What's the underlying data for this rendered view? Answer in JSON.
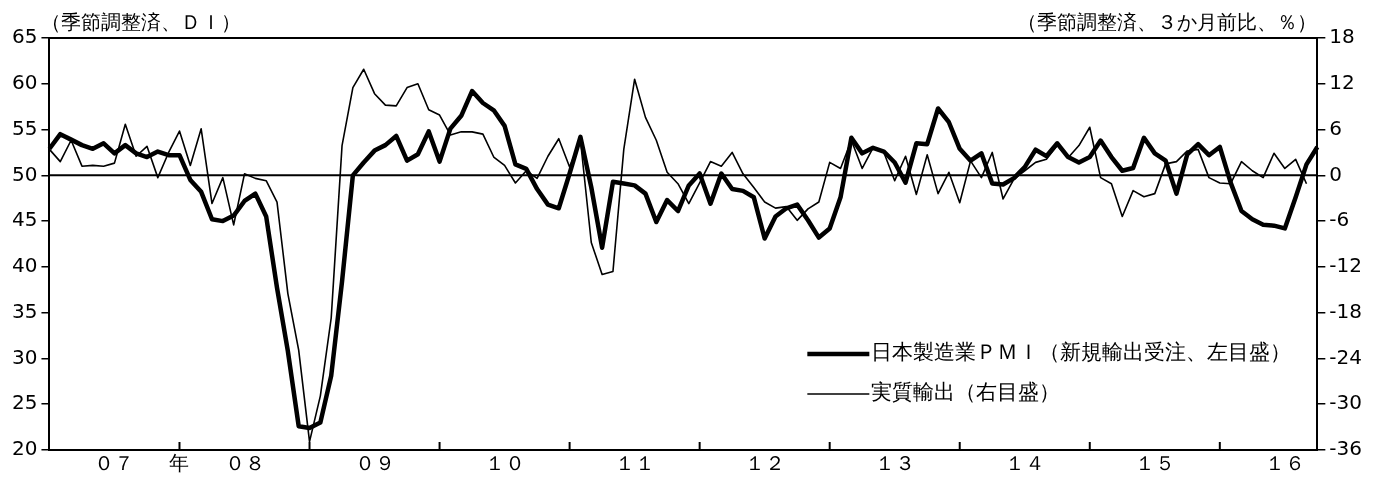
{
  "chart_data": {
    "type": "line",
    "ylabel": "（季節調整済、ＤＩ）",
    "y2label": "（季節調整済、３か月前比、％）",
    "categories": [
      null,
      null,
      null,
      null,
      null,
      null,
      "０７",
      null,
      null,
      null,
      null,
      null,
      "年",
      null,
      null,
      null,
      null,
      null,
      "０８",
      null,
      null,
      null,
      null,
      null,
      null,
      null,
      null,
      null,
      null,
      null,
      "０９",
      null,
      null,
      null,
      null,
      null,
      null,
      null,
      null,
      null,
      null,
      null,
      "１０",
      null,
      null,
      null,
      null,
      null,
      null,
      null,
      null,
      null,
      null,
      null,
      "１１",
      null,
      null,
      null,
      null,
      null,
      null,
      null,
      null,
      null,
      null,
      null,
      "１２",
      null,
      null,
      null,
      null,
      null,
      null,
      null,
      null,
      null,
      null,
      null,
      "１３",
      null,
      null,
      null,
      null,
      null,
      null,
      null,
      null,
      null,
      null,
      null,
      "１４",
      null,
      null,
      null,
      null,
      null,
      null,
      null,
      null,
      null,
      null,
      null,
      "１５",
      null,
      null,
      null,
      null,
      null,
      null,
      null,
      null,
      null,
      null,
      null,
      "１６",
      null,
      null,
      null
    ],
    "series": [
      {
        "name": "日本製造業ＰＭＩ（新規輸出受注、左目盛）",
        "color": "#000000",
        "values": [
          52.9,
          54.5,
          53.9,
          53.3,
          52.9,
          53.5,
          52.4,
          53.3,
          52.4,
          52.0,
          52.6,
          52.2,
          52.2,
          49.5,
          48.2,
          45.2,
          45.0,
          45.6,
          47.2,
          48.0,
          45.5,
          37.7,
          30.8,
          22.6,
          22.4,
          23.0,
          28.1,
          38.4,
          50.0,
          51.4,
          52.7,
          53.3,
          54.3,
          51.6,
          52.3,
          54.8,
          51.5,
          55.1,
          56.5,
          59.2,
          57.9,
          57.1,
          55.4,
          51.2,
          50.7,
          48.5,
          46.8,
          46.4,
          50.2,
          54.2,
          48.7,
          42.1,
          49.3,
          49.1,
          48.9,
          48.0,
          44.9,
          47.3,
          46.1,
          48.9,
          50.2,
          46.9,
          50.2,
          48.5,
          48.3,
          47.6,
          43.1,
          45.5,
          46.4,
          46.8,
          45.1,
          43.2,
          44.2,
          47.6,
          54.1,
          52.4,
          53.0,
          52.6,
          51.4,
          49.2,
          53.5,
          53.4,
          57.3,
          55.8,
          52.9,
          51.6,
          52.4,
          49.1,
          49.0,
          49.7,
          50.9,
          52.8,
          52.1,
          53.5,
          52.0,
          51.4,
          52.0,
          53.8,
          52.0,
          50.5,
          50.8,
          54.1,
          52.4,
          51.6,
          48.0,
          52.3,
          53.4,
          52.2,
          53.1,
          49.2,
          46.1,
          45.2,
          44.6,
          44.5,
          44.2,
          47.6,
          51.2,
          53.1
        ]
      },
      {
        "name": "実質輸出（右目盛）",
        "color": "#000000",
        "axis": "y2",
        "values": [
          3.4,
          1.8,
          4.6,
          1.2,
          1.3,
          1.2,
          1.6,
          6.7,
          2.5,
          3.8,
          -0.3,
          3.0,
          5.8,
          1.3,
          6.1,
          -3.7,
          -0.3,
          -6.5,
          0.2,
          -0.4,
          -0.7,
          -3.5,
          -15.5,
          -22.9,
          -34.9,
          -28.9,
          -18.7,
          3.9,
          11.5,
          13.9,
          10.7,
          9.2,
          9.1,
          11.5,
          12.0,
          8.6,
          7.9,
          5.3,
          5.7,
          5.7,
          5.4,
          2.4,
          1.3,
          -1.0,
          0.6,
          -0.4,
          2.5,
          4.8,
          1.1,
          4.6,
          -8.8,
          -13.0,
          -12.6,
          3.4,
          12.6,
          7.6,
          4.6,
          0.4,
          -1.1,
          -3.7,
          -1.0,
          1.8,
          1.2,
          3.0,
          0.2,
          -1.6,
          -3.5,
          -4.3,
          -4.1,
          -5.9,
          -4.4,
          -3.5,
          1.7,
          0.9,
          4.6,
          0.9,
          3.6,
          3.0,
          -0.7,
          2.5,
          -2.5,
          2.7,
          -2.4,
          0.4,
          -3.6,
          1.9,
          -0.3,
          3.0,
          -3.1,
          -0.5,
          0.6,
          1.7,
          2.1,
          3.9,
          2.3,
          3.9,
          6.3,
          -0.3,
          -1.1,
          -5.4,
          -2.0,
          -2.8,
          -2.4,
          1.5,
          1.8,
          3.2,
          3.4,
          -0.3,
          -1.0,
          -1.1,
          1.8,
          0.6,
          -0.3,
          2.9,
          0.9,
          2.1,
          -1.1,
          null
        ]
      }
    ],
    "ylim": [
      20,
      65
    ],
    "yticks": [
      20,
      25,
      30,
      35,
      40,
      45,
      50,
      55,
      60,
      65
    ],
    "y2lim": [
      -36,
      18
    ],
    "y2ticks": [
      -36,
      -30,
      -24,
      -18,
      -12,
      -6,
      0,
      6,
      12,
      18
    ],
    "ref_lines": [
      {
        "axis": "y",
        "value": 50
      }
    ],
    "grid": false,
    "legend": "bottom right",
    "marker": "none",
    "line_style": "solid"
  }
}
